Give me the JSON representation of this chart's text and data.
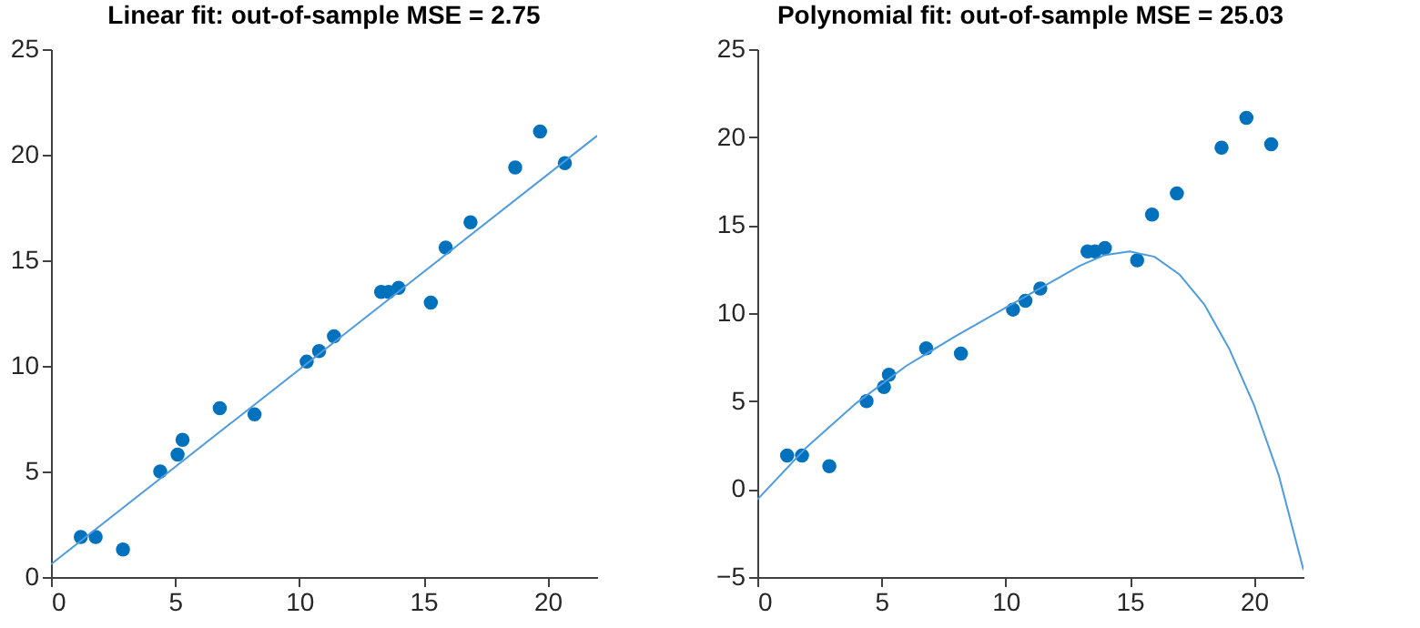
{
  "chart_data": [
    {
      "type": "scatter",
      "title": "Linear fit: out-of-sample MSE = 2.75",
      "xlim": [
        0,
        22
      ],
      "xticks": [
        0,
        5,
        10,
        15,
        20
      ],
      "ylim": [
        0,
        25
      ],
      "yticks": [
        0,
        5,
        10,
        15,
        20,
        25
      ],
      "grid": false,
      "legend": false,
      "series": [
        {
          "marker": "circle",
          "color": "#0072bd",
          "x": [
            1.2,
            1.8,
            2.9,
            4.4,
            5.1,
            5.3,
            6.8,
            8.2,
            10.3,
            10.8,
            11.4,
            13.3,
            13.6,
            14.0,
            15.3,
            15.9,
            16.9,
            18.7,
            19.7,
            20.7
          ],
          "values": [
            1.9,
            1.9,
            1.3,
            5.0,
            5.8,
            6.5,
            8.0,
            7.7,
            10.2,
            10.7,
            11.4,
            13.5,
            13.5,
            13.7,
            13.0,
            15.6,
            16.8,
            19.4,
            21.1,
            19.6
          ]
        },
        {
          "type": "line",
          "color": "#4d9be0",
          "x": [
            0,
            22
          ],
          "values": [
            0.6,
            20.9
          ]
        }
      ]
    },
    {
      "type": "scatter",
      "title": "Polynomial fit: out-of-sample MSE = 25.03",
      "xlim": [
        0,
        22
      ],
      "xticks": [
        0,
        5,
        10,
        15,
        20
      ],
      "ylim": [
        -5,
        25
      ],
      "yticks": [
        -5,
        0,
        5,
        10,
        15,
        20,
        25
      ],
      "grid": false,
      "legend": false,
      "series": [
        {
          "marker": "circle",
          "color": "#0072bd",
          "x": [
            1.2,
            1.8,
            2.9,
            4.4,
            5.1,
            5.3,
            6.8,
            8.2,
            10.3,
            10.8,
            11.4,
            13.3,
            13.6,
            14.0,
            15.3,
            15.9,
            16.9,
            18.7,
            19.7,
            20.7
          ],
          "values": [
            1.9,
            1.9,
            1.3,
            5.0,
            5.8,
            6.5,
            8.0,
            7.7,
            10.2,
            10.7,
            11.4,
            13.5,
            13.5,
            13.7,
            13.0,
            15.6,
            16.8,
            19.4,
            21.1,
            19.6
          ]
        },
        {
          "type": "line",
          "color": "#4d9be0",
          "x": [
            0,
            2,
            4,
            6,
            8,
            10,
            12,
            13,
            14,
            15,
            16,
            17,
            18,
            19,
            20,
            21,
            22
          ],
          "values": [
            -0.6,
            2.4,
            4.9,
            7.0,
            8.7,
            10.3,
            11.9,
            12.7,
            13.3,
            13.5,
            13.2,
            12.2,
            10.5,
            8.0,
            4.8,
            0.8,
            -4.6
          ]
        }
      ]
    }
  ]
}
